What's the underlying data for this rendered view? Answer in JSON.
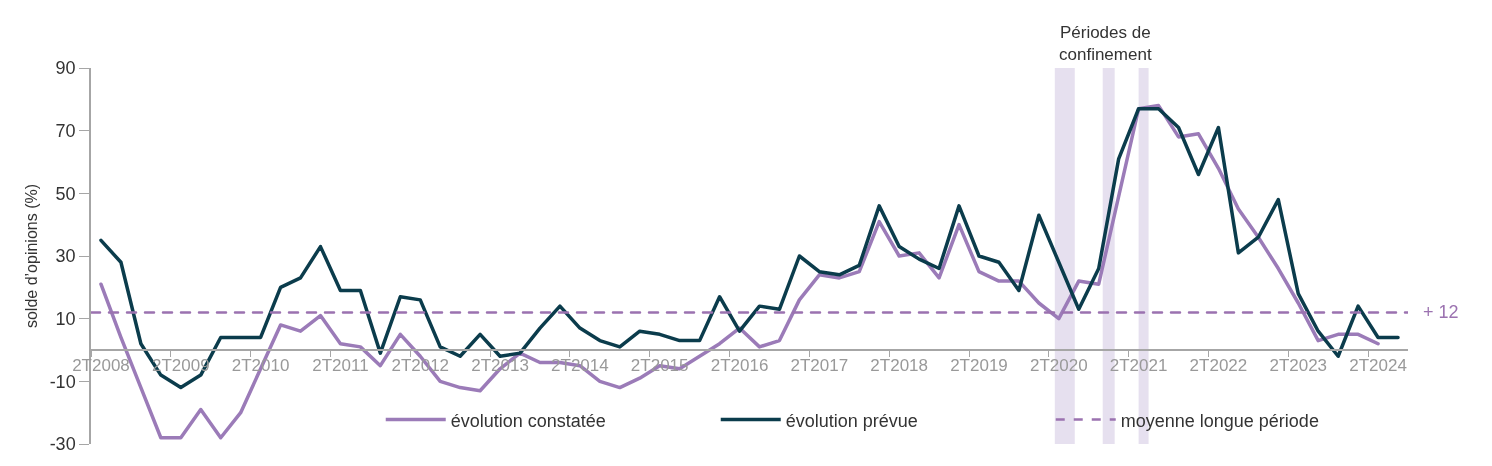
{
  "chart_data": {
    "type": "line",
    "ylabel": "solde d’opinions (%)",
    "categories": [
      "2T2008",
      null,
      null,
      null,
      "2T2009",
      null,
      null,
      null,
      "2T2010",
      null,
      null,
      null,
      "2T2011",
      null,
      null,
      null,
      "2T2012",
      null,
      null,
      null,
      "2T2013",
      null,
      null,
      null,
      "2T2014",
      null,
      null,
      null,
      "2T2015",
      null,
      null,
      null,
      "2T2016",
      null,
      null,
      null,
      "2T2017",
      null,
      null,
      null,
      "2T2018",
      null,
      null,
      null,
      "2T2019",
      null,
      null,
      null,
      "2T2020",
      null,
      null,
      null,
      "2T2021",
      null,
      null,
      null,
      "2T2022",
      null,
      null,
      null,
      "2T2023",
      null,
      null,
      null,
      "2T2024",
      null
    ],
    "series": [
      {
        "name": "évolution constatée",
        "color": "#9b7bb8",
        "values": [
          21,
          4,
          -12,
          -28,
          -28,
          -19,
          -28,
          -20,
          -6,
          8,
          6,
          11,
          2,
          1,
          -5,
          5,
          -2,
          -10,
          -12,
          -13,
          -6,
          -1,
          -4,
          -4,
          -5,
          -10,
          -12,
          -9,
          -5,
          -6,
          -2,
          2,
          7,
          1,
          3,
          16,
          24,
          23,
          25,
          41,
          30,
          31,
          23,
          40,
          25,
          22,
          22,
          15,
          10,
          22,
          21,
          49,
          77,
          78,
          68,
          69,
          58,
          45,
          36,
          26,
          15,
          3,
          5,
          5,
          2,
          null
        ]
      },
      {
        "name": "évolution prévue",
        "color": "#0b3c4c",
        "values": [
          35,
          28,
          2,
          -8,
          -12,
          -8,
          4,
          4,
          4,
          20,
          23,
          33,
          19,
          19,
          -1,
          17,
          16,
          1,
          -2,
          5,
          -2,
          -1,
          7,
          14,
          7,
          3,
          1,
          6,
          5,
          3,
          3,
          17,
          6,
          14,
          13,
          30,
          25,
          24,
          27,
          46,
          33,
          29,
          26,
          46,
          30,
          28,
          19,
          43,
          28,
          13,
          26,
          61,
          77,
          77,
          71,
          56,
          71,
          31,
          36,
          48,
          18,
          6,
          -2,
          14,
          4,
          4
        ]
      }
    ],
    "ylim": [
      -30,
      90
    ],
    "yticks": [
      -30,
      -10,
      10,
      30,
      50,
      70,
      90
    ],
    "grid": false,
    "legend": "bottom",
    "line_style": "solid",
    "ref_lines": [
      {
        "axis": "y",
        "value": 12,
        "label": "moyenne longue période",
        "color": "#9b72b0",
        "line_style": "dashed"
      }
    ],
    "annotations": [
      "Périodes de\nconfinement",
      "+ 12"
    ]
  }
}
